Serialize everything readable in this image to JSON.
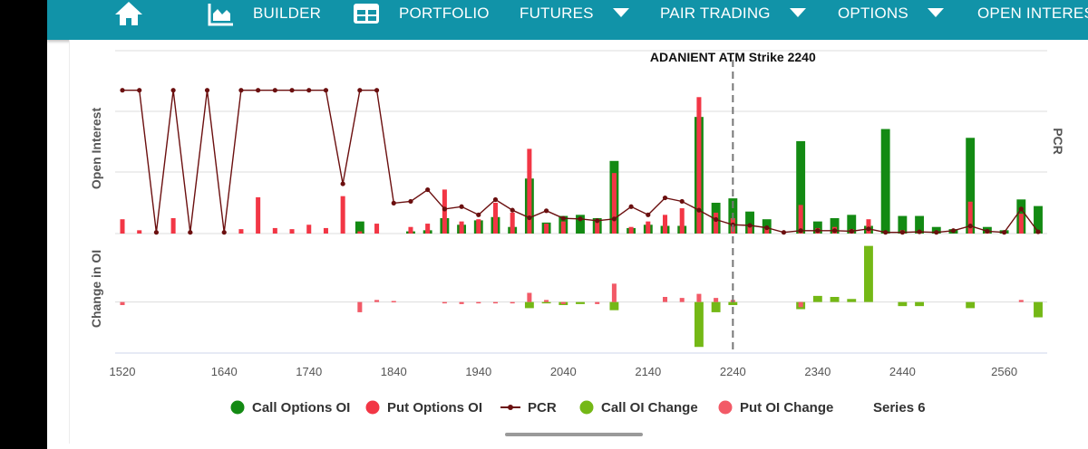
{
  "nav": {
    "items": [
      {
        "key": "home",
        "label": "",
        "icon": "home-icon"
      },
      {
        "key": "builder",
        "label": "BUILDER",
        "icon": "chart-area-icon"
      },
      {
        "key": "portfolio",
        "label": "PORTFOLIO",
        "icon": "table-grid-icon"
      },
      {
        "key": "futures",
        "label": "FUTURES",
        "icon": "chevron-down-icon"
      },
      {
        "key": "pair_trading",
        "label": "PAIR TRADING",
        "icon": "chevron-down-icon"
      },
      {
        "key": "options",
        "label": "OPTIONS",
        "icon": "chevron-down-icon"
      },
      {
        "key": "open_interest",
        "label": "OPEN INTERES",
        "icon": ""
      }
    ]
  },
  "colors": {
    "nav_bg": "#1193a8",
    "call_oi": "#138a13",
    "put_oi": "#f23645",
    "pcr": "#6b0f0f",
    "call_oi_change": "#74b816",
    "put_oi_change": "#f25a67"
  },
  "chart_data": {
    "type": "bar",
    "annotation": "ADANIENT ATM Strike 2240",
    "atm_strike": 2240,
    "upper_axis_label": "Open Interest",
    "lower_axis_label": "Change in OI",
    "right_axis_label": "PCR",
    "x_ticks": [
      1520,
      1640,
      1740,
      1840,
      1940,
      2040,
      2140,
      2240,
      2340,
      2440,
      2560
    ],
    "legend": [
      {
        "name": "Call Options OI",
        "symbol": "circle",
        "color": "#138a13"
      },
      {
        "name": "Put Options OI",
        "symbol": "circle",
        "color": "#f23645"
      },
      {
        "name": "PCR",
        "symbol": "line",
        "color": "#6b0f0f"
      },
      {
        "name": "Call OI Change",
        "symbol": "circle",
        "color": "#74b816"
      },
      {
        "name": "Put OI Change",
        "symbol": "circle",
        "color": "#f25a67"
      },
      {
        "name": "Series 6",
        "symbol": "none",
        "color": ""
      }
    ],
    "strikes": [
      1520,
      1540,
      1560,
      1580,
      1600,
      1620,
      1640,
      1660,
      1680,
      1700,
      1720,
      1740,
      1760,
      1780,
      1800,
      1820,
      1840,
      1860,
      1880,
      1900,
      1920,
      1940,
      1960,
      1980,
      2000,
      2020,
      2040,
      2060,
      2080,
      2100,
      2120,
      2140,
      2160,
      2180,
      2200,
      2220,
      2240,
      2260,
      2280,
      2300,
      2320,
      2340,
      2360,
      2380,
      2400,
      2420,
      2440,
      2460,
      2480,
      2500,
      2520,
      2540,
      2560,
      2580,
      2600
    ],
    "call_oi": [
      0,
      0,
      0,
      0,
      0,
      0,
      0,
      0,
      0,
      0,
      0,
      0,
      0,
      0,
      11,
      0,
      0,
      2,
      3,
      14,
      8,
      12,
      15,
      6,
      50,
      10,
      16,
      17,
      14,
      66,
      5,
      8,
      7,
      7,
      106,
      28,
      32,
      20,
      13,
      0,
      84,
      11,
      14,
      17,
      7,
      95,
      16,
      16,
      6,
      4,
      87,
      6,
      3,
      31,
      25
    ],
    "put_oi": [
      13,
      3,
      0,
      14,
      1,
      0,
      0,
      4,
      33,
      5,
      4,
      8,
      5,
      34,
      2,
      9,
      0,
      6,
      9,
      40,
      11,
      13,
      28,
      19,
      77,
      9,
      11,
      0,
      13,
      55,
      6,
      11,
      17,
      23,
      124,
      19,
      14,
      7,
      6,
      0,
      26,
      5,
      6,
      4,
      13,
      0,
      3,
      2,
      0,
      0,
      29,
      1,
      1,
      18,
      3
    ],
    "pcr": [
      2.45,
      2.45,
      0.02,
      2.45,
      0.02,
      2.45,
      0.02,
      2.45,
      2.45,
      2.45,
      2.45,
      2.45,
      2.45,
      0.85,
      2.45,
      2.45,
      0.52,
      0.55,
      0.75,
      0.42,
      0.46,
      0.32,
      0.58,
      0.4,
      0.27,
      0.39,
      0.26,
      0.25,
      0.22,
      0.25,
      0.46,
      0.32,
      0.61,
      0.55,
      0.4,
      0.24,
      0.15,
      0.14,
      0.1,
      0.02,
      0.05,
      0.05,
      0.05,
      0.04,
      0.08,
      0.02,
      0.02,
      0.03,
      0.02,
      0.05,
      0.13,
      0.04,
      0.02,
      0.42,
      0.03
    ],
    "call_oi_change": [
      0,
      0,
      0,
      0,
      0,
      0,
      0,
      0,
      0,
      0,
      0,
      0,
      0,
      0,
      0,
      0,
      0,
      0,
      0,
      0,
      0,
      0,
      0,
      0,
      -6,
      -1,
      -3,
      -2,
      0,
      -8,
      0,
      0,
      0,
      0,
      -44,
      -10,
      -3,
      0,
      0,
      0,
      -7,
      6,
      5,
      3,
      55,
      0,
      -4,
      -4,
      0,
      0,
      -6,
      0,
      0,
      0,
      -15
    ],
    "put_oi_change": [
      -3,
      0,
      0,
      0,
      0,
      0,
      0,
      0,
      0,
      0,
      0,
      0,
      0,
      0,
      -10,
      2,
      1,
      0,
      0,
      -1,
      -2,
      -1,
      -1,
      -1,
      9,
      2,
      -2,
      0,
      -2,
      18,
      0,
      0,
      5,
      4,
      8,
      4,
      2,
      0,
      0,
      0,
      -5,
      0,
      0,
      0,
      0,
      0,
      0,
      0,
      0,
      0,
      0,
      0,
      0,
      2,
      0
    ],
    "xlim": [
      1520,
      2600
    ],
    "upper_ylim": [
      0,
      130
    ],
    "pcr_ylim": [
      0,
      2.6
    ],
    "lower_ylim": [
      -50,
      60
    ],
    "grid": true
  }
}
